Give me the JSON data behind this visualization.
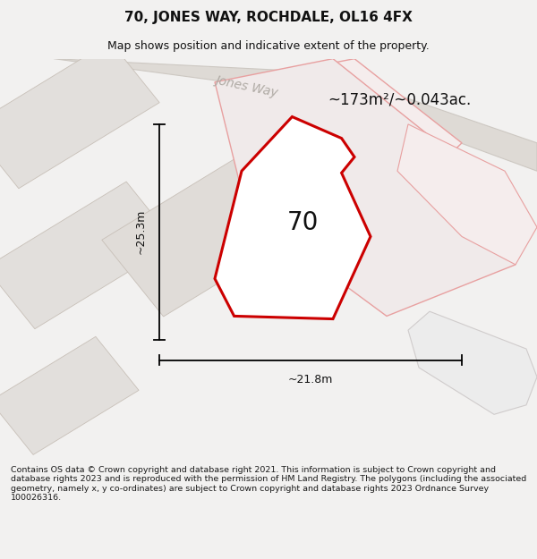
{
  "title_line1": "70, JONES WAY, ROCHDALE, OL16 4FX",
  "title_line2": "Map shows position and indicative extent of the property.",
  "footer_text": "Contains OS data © Crown copyright and database right 2021. This information is subject to Crown copyright and database rights 2023 and is reproduced with the permission of HM Land Registry. The polygons (including the associated geometry, namely x, y co-ordinates) are subject to Crown copyright and database rights 2023 Ordnance Survey 100026316.",
  "area_label": "~173m²/~0.043ac.",
  "plot_number": "70",
  "dim_vertical": "~25.3m",
  "dim_horizontal": "~21.8m",
  "road_label": "Jones Way",
  "bg_color": "#f2f1f0",
  "map_bg": "#eeeceb",
  "white": "#ffffff",
  "plot_stroke": "#cc0000",
  "pink_stroke": "#e8a0a0",
  "pink_fill": "#f5eded",
  "gray_fill": "#e2dfdc",
  "gray_stroke": "#c8c0b8",
  "road_fill": "#dedad5",
  "road_stroke": "#cdc8c2",
  "footer_color": "#1a1a1a"
}
